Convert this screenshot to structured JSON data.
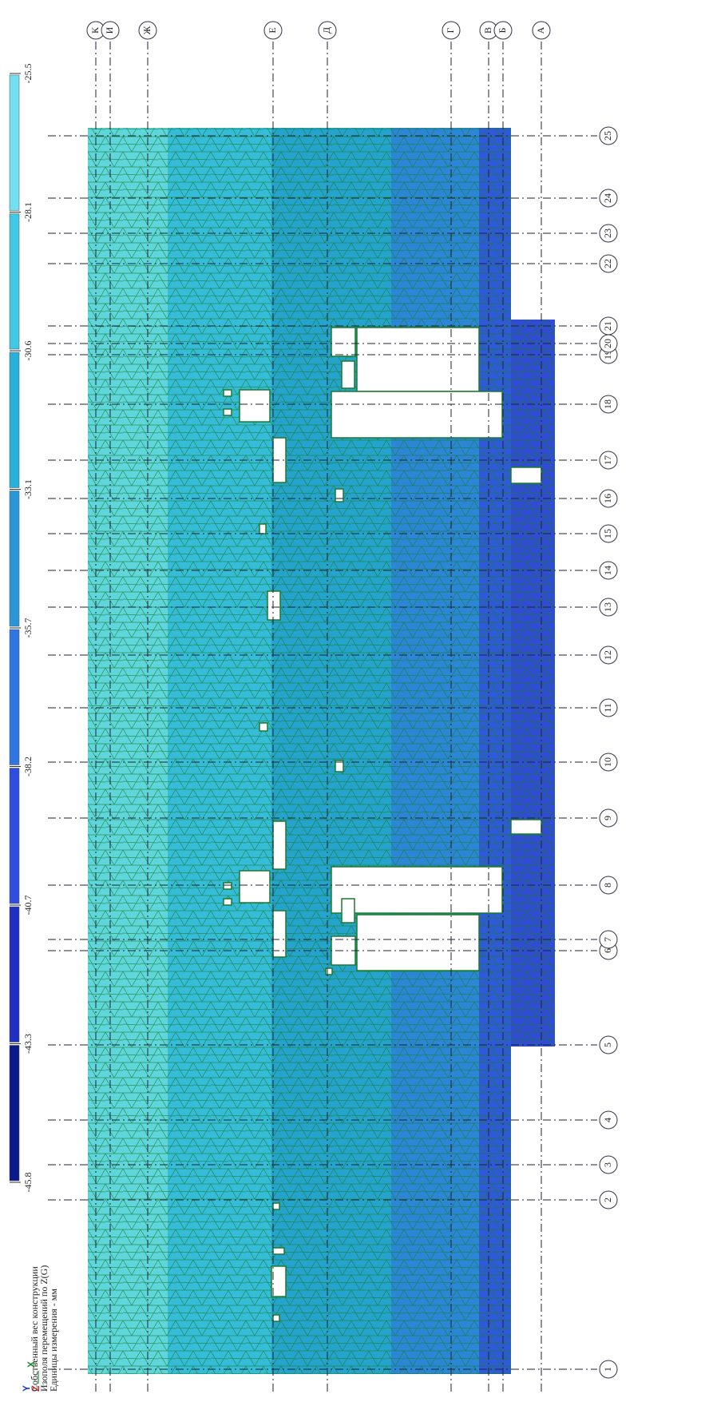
{
  "legend": {
    "values": [
      -45.8,
      -43.3,
      -40.7,
      -38.2,
      -35.7,
      -33.1,
      -30.6,
      -28.1,
      -25.5
    ]
  },
  "caption": [
    "Собственный вес конструкции",
    "Изополя  перемещений по Z(G)",
    "Единицы измерения - мм"
  ],
  "letter_axes": [
    "К",
    "И",
    "Ж",
    "Е",
    "Д",
    "Г",
    "В",
    "Б",
    "А"
  ],
  "number_axes": [
    "1",
    "2",
    "3",
    "4",
    "5",
    "6",
    "7",
    "8",
    "9",
    "10",
    "11",
    "12",
    "13",
    "14",
    "15",
    "16",
    "17",
    "18",
    "19",
    "20",
    "21",
    "22",
    "23",
    "24",
    "25"
  ],
  "axis_icon": {
    "y": "Y",
    "z": "Z",
    "x": "X"
  }
}
